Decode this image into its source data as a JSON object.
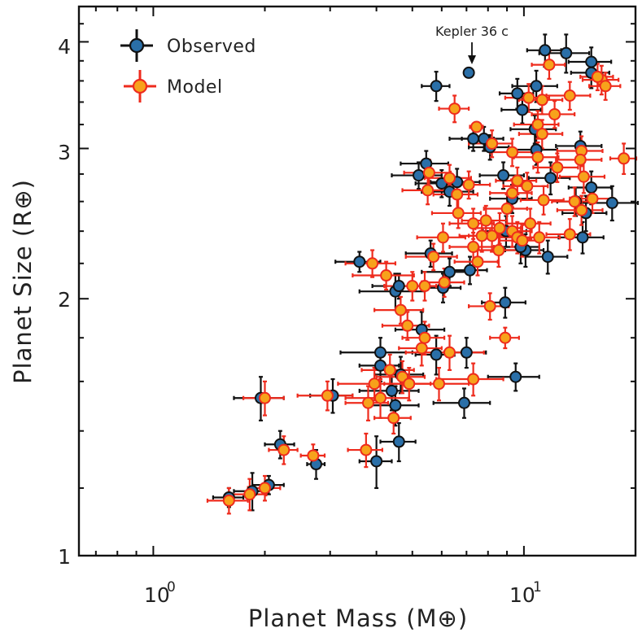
{
  "chart_data": {
    "type": "scatter",
    "title": "",
    "xlabel": "Planet Mass (M⊕)",
    "ylabel": "Planet Size (R⊕)",
    "x_scale": "log",
    "y_scale": "log",
    "xlim": [
      0.63,
      20
    ],
    "ylim": [
      1,
      4.4
    ],
    "x_ticks": [
      {
        "value": 1,
        "label": "10",
        "sup": "0"
      },
      {
        "value": 10,
        "label": "10",
        "sup": "1"
      }
    ],
    "y_ticks": [
      {
        "value": 1,
        "label": "1"
      },
      {
        "value": 2,
        "label": "2"
      },
      {
        "value": 3,
        "label": "3"
      },
      {
        "value": 4,
        "label": "4"
      }
    ],
    "legend": {
      "position": "top-left",
      "entries": [
        "Observed",
        "Model"
      ]
    },
    "annotations": [
      {
        "text": "Kepler 36 c",
        "x": 7.1,
        "y": 3.68
      }
    ],
    "series": [
      {
        "name": "Observed",
        "marker_fill": "#2a6fa8",
        "error_color": "#111111",
        "points": [
          {
            "x": 1.6,
            "y": 1.17,
            "xe": 0.15,
            "ye": 0.03
          },
          {
            "x": 1.85,
            "y": 1.19,
            "xe": 0.2,
            "ye": 0.06
          },
          {
            "x": 2.05,
            "y": 1.21,
            "xe": 0.2,
            "ye": 0.03
          },
          {
            "x": 2.2,
            "y": 1.35,
            "xe": 0.2,
            "ye": 0.05
          },
          {
            "x": 1.95,
            "y": 1.53,
            "xe": 0.3,
            "ye": 0.09
          },
          {
            "x": 2.75,
            "y": 1.28,
            "xe": 0.15,
            "ye": 0.05
          },
          {
            "x": 3.05,
            "y": 1.54,
            "xe": 0.4,
            "ye": 0.07
          },
          {
            "x": 4.0,
            "y": 1.29,
            "xe": 0.4,
            "ye": 0.09
          },
          {
            "x": 4.6,
            "y": 1.36,
            "xe": 0.5,
            "ye": 0.07
          },
          {
            "x": 4.5,
            "y": 1.5,
            "xe": 0.7,
            "ye": 0.08
          },
          {
            "x": 4.4,
            "y": 1.56,
            "xe": 0.8,
            "ye": 0.08
          },
          {
            "x": 4.65,
            "y": 1.63,
            "xe": 0.7,
            "ye": 0.08
          },
          {
            "x": 4.1,
            "y": 1.67,
            "xe": 0.5,
            "ye": 0.07
          },
          {
            "x": 4.1,
            "y": 1.73,
            "xe": 0.9,
            "ye": 0.07
          },
          {
            "x": 5.3,
            "y": 1.84,
            "xe": 0.8,
            "ye": 0.09
          },
          {
            "x": 4.5,
            "y": 2.04,
            "xe": 0.9,
            "ye": 0.1
          },
          {
            "x": 4.6,
            "y": 2.07,
            "xe": 0.7,
            "ye": 0.07
          },
          {
            "x": 5.8,
            "y": 1.72,
            "xe": 0.7,
            "ye": 0.09
          },
          {
            "x": 6.3,
            "y": 2.15,
            "xe": 1.0,
            "ye": 0.08
          },
          {
            "x": 5.6,
            "y": 2.26,
            "xe": 0.8,
            "ye": 0.08
          },
          {
            "x": 6.05,
            "y": 2.06,
            "xe": 0.7,
            "ye": 0.08
          },
          {
            "x": 3.6,
            "y": 2.21,
            "xe": 0.5,
            "ye": 0.06
          },
          {
            "x": 7.15,
            "y": 2.16,
            "xe": 0.8,
            "ye": 0.08
          },
          {
            "x": 7.0,
            "y": 1.73,
            "xe": 0.9,
            "ye": 0.07
          },
          {
            "x": 6.9,
            "y": 1.51,
            "xe": 1.2,
            "ye": 0.06
          },
          {
            "x": 9.5,
            "y": 1.62,
            "xe": 1.5,
            "ye": 0.06
          },
          {
            "x": 8.9,
            "y": 1.98,
            "xe": 1.2,
            "ye": 0.08
          },
          {
            "x": 5.2,
            "y": 2.79,
            "xe": 0.8,
            "ye": 0.1
          },
          {
            "x": 5.45,
            "y": 2.88,
            "xe": 0.8,
            "ye": 0.1
          },
          {
            "x": 6.0,
            "y": 2.73,
            "xe": 0.9,
            "ye": 0.1
          },
          {
            "x": 6.3,
            "y": 2.67,
            "xe": 1.0,
            "ye": 0.1
          },
          {
            "x": 6.6,
            "y": 2.74,
            "xe": 1.0,
            "ye": 0.1
          },
          {
            "x": 5.8,
            "y": 3.55,
            "xe": 0.5,
            "ye": 0.14
          },
          {
            "x": 7.1,
            "y": 3.68,
            "xe": 0.2,
            "ye": 0.04
          },
          {
            "x": 7.3,
            "y": 3.08,
            "xe": 1.0,
            "ye": 0.1
          },
          {
            "x": 7.8,
            "y": 3.08,
            "xe": 1.0,
            "ye": 0.1
          },
          {
            "x": 8.1,
            "y": 3.01,
            "xe": 1.0,
            "ye": 0.1
          },
          {
            "x": 9.6,
            "y": 3.48,
            "xe": 1.0,
            "ye": 0.14
          },
          {
            "x": 9.9,
            "y": 3.33,
            "xe": 1.2,
            "ye": 0.12
          },
          {
            "x": 10.8,
            "y": 3.55,
            "xe": 1.5,
            "ye": 0.15
          },
          {
            "x": 11.4,
            "y": 3.91,
            "xe": 1.2,
            "ye": 0.17
          },
          {
            "x": 13.0,
            "y": 3.88,
            "xe": 2.0,
            "ye": 0.2
          },
          {
            "x": 15.2,
            "y": 3.79,
            "xe": 2.0,
            "ye": 0.15
          },
          {
            "x": 15.2,
            "y": 3.68,
            "xe": 1.8,
            "ye": 0.15
          },
          {
            "x": 10.7,
            "y": 3.16,
            "xe": 1.5,
            "ye": 0.12
          },
          {
            "x": 10.8,
            "y": 2.99,
            "xe": 1.5,
            "ye": 0.12
          },
          {
            "x": 14.2,
            "y": 3.02,
            "xe": 2.0,
            "ye": 0.12
          },
          {
            "x": 8.8,
            "y": 2.79,
            "xe": 1.2,
            "ye": 0.1
          },
          {
            "x": 11.8,
            "y": 2.77,
            "xe": 1.5,
            "ye": 0.12
          },
          {
            "x": 15.2,
            "y": 2.7,
            "xe": 2.0,
            "ye": 0.12
          },
          {
            "x": 14.7,
            "y": 2.52,
            "xe": 2.0,
            "ye": 0.12
          },
          {
            "x": 17.3,
            "y": 2.59,
            "xe": 3.0,
            "ye": 0.12
          },
          {
            "x": 14.4,
            "y": 2.36,
            "xe": 2.0,
            "ye": 0.1
          },
          {
            "x": 11.6,
            "y": 2.24,
            "xe": 1.5,
            "ye": 0.1
          },
          {
            "x": 10.1,
            "y": 2.28,
            "xe": 1.2,
            "ye": 0.1
          },
          {
            "x": 9.8,
            "y": 2.3,
            "xe": 1.2,
            "ye": 0.1
          },
          {
            "x": 8.95,
            "y": 2.4,
            "xe": 1.2,
            "ye": 0.1
          },
          {
            "x": 9.3,
            "y": 2.62,
            "xe": 1.2,
            "ye": 0.1
          },
          {
            "x": 13.8,
            "y": 2.6,
            "xe": 1.5,
            "ye": 0.1
          }
        ]
      },
      {
        "name": "Model",
        "marker_fill": "#f7a21b",
        "marker_edge": "#ee2b1d",
        "error_color": "#ee2b1d",
        "points": [
          {
            "x": 1.6,
            "y": 1.16,
            "xe": 0.2,
            "ye": 0.04
          },
          {
            "x": 1.82,
            "y": 1.18,
            "xe": 0.2,
            "ye": 0.05
          },
          {
            "x": 2.0,
            "y": 1.2,
            "xe": 0.2,
            "ye": 0.04
          },
          {
            "x": 2.25,
            "y": 1.33,
            "xe": 0.2,
            "ye": 0.05
          },
          {
            "x": 2.0,
            "y": 1.53,
            "xe": 0.25,
            "ye": 0.07
          },
          {
            "x": 2.7,
            "y": 1.31,
            "xe": 0.2,
            "ye": 0.04
          },
          {
            "x": 2.95,
            "y": 1.54,
            "xe": 0.5,
            "ye": 0.06
          },
          {
            "x": 3.75,
            "y": 1.33,
            "xe": 0.4,
            "ye": 0.06
          },
          {
            "x": 3.8,
            "y": 1.51,
            "xe": 0.5,
            "ye": 0.07
          },
          {
            "x": 4.1,
            "y": 1.53,
            "xe": 0.8,
            "ye": 0.08
          },
          {
            "x": 3.95,
            "y": 1.59,
            "xe": 0.8,
            "ye": 0.07
          },
          {
            "x": 4.35,
            "y": 1.65,
            "xe": 0.7,
            "ye": 0.07
          },
          {
            "x": 4.45,
            "y": 1.45,
            "xe": 0.5,
            "ye": 0.06
          },
          {
            "x": 4.7,
            "y": 1.62,
            "xe": 0.7,
            "ye": 0.07
          },
          {
            "x": 4.9,
            "y": 1.59,
            "xe": 0.7,
            "ye": 0.07
          },
          {
            "x": 5.3,
            "y": 1.75,
            "xe": 0.7,
            "ye": 0.08
          },
          {
            "x": 5.4,
            "y": 1.8,
            "xe": 0.7,
            "ye": 0.08
          },
          {
            "x": 6.3,
            "y": 1.73,
            "xe": 1.5,
            "ye": 0.08
          },
          {
            "x": 5.9,
            "y": 1.59,
            "xe": 1.2,
            "ye": 0.07
          },
          {
            "x": 7.3,
            "y": 1.61,
            "xe": 1.5,
            "ye": 0.07
          },
          {
            "x": 8.9,
            "y": 1.8,
            "xe": 0.8,
            "ye": 0.05
          },
          {
            "x": 8.1,
            "y": 1.96,
            "xe": 1.0,
            "ye": 0.07
          },
          {
            "x": 4.65,
            "y": 1.94,
            "xe": 0.7,
            "ye": 0.07
          },
          {
            "x": 4.85,
            "y": 1.86,
            "xe": 0.7,
            "ye": 0.07
          },
          {
            "x": 5.0,
            "y": 2.07,
            "xe": 0.8,
            "ye": 0.08
          },
          {
            "x": 5.4,
            "y": 2.07,
            "xe": 0.8,
            "ye": 0.08
          },
          {
            "x": 4.25,
            "y": 2.13,
            "xe": 0.8,
            "ye": 0.08
          },
          {
            "x": 3.9,
            "y": 2.2,
            "xe": 0.6,
            "ye": 0.08
          },
          {
            "x": 6.1,
            "y": 2.09,
            "xe": 0.8,
            "ye": 0.08
          },
          {
            "x": 5.7,
            "y": 2.24,
            "xe": 0.9,
            "ye": 0.08
          },
          {
            "x": 6.05,
            "y": 2.36,
            "xe": 0.9,
            "ye": 0.09
          },
          {
            "x": 7.5,
            "y": 2.21,
            "xe": 1.0,
            "ye": 0.08
          },
          {
            "x": 7.3,
            "y": 2.3,
            "xe": 1.0,
            "ye": 0.09
          },
          {
            "x": 7.3,
            "y": 2.45,
            "xe": 1.0,
            "ye": 0.1
          },
          {
            "x": 7.9,
            "y": 2.47,
            "xe": 1.1,
            "ye": 0.1
          },
          {
            "x": 8.2,
            "y": 2.37,
            "xe": 1.1,
            "ye": 0.1
          },
          {
            "x": 8.6,
            "y": 2.42,
            "xe": 1.2,
            "ye": 0.1
          },
          {
            "x": 9.0,
            "y": 2.55,
            "xe": 1.2,
            "ye": 0.1
          },
          {
            "x": 9.3,
            "y": 2.4,
            "xe": 1.2,
            "ye": 0.1
          },
          {
            "x": 9.6,
            "y": 2.36,
            "xe": 1.3,
            "ye": 0.1
          },
          {
            "x": 9.9,
            "y": 2.34,
            "xe": 1.3,
            "ye": 0.1
          },
          {
            "x": 10.4,
            "y": 2.45,
            "xe": 1.4,
            "ye": 0.1
          },
          {
            "x": 11.0,
            "y": 2.36,
            "xe": 1.5,
            "ye": 0.1
          },
          {
            "x": 13.3,
            "y": 2.38,
            "xe": 1.8,
            "ye": 0.1
          },
          {
            "x": 14.3,
            "y": 2.54,
            "xe": 2.0,
            "ye": 0.1
          },
          {
            "x": 15.3,
            "y": 2.62,
            "xe": 2.0,
            "ye": 0.1
          },
          {
            "x": 13.7,
            "y": 2.6,
            "xe": 1.8,
            "ye": 0.1
          },
          {
            "x": 11.3,
            "y": 2.61,
            "xe": 1.5,
            "ye": 0.1
          },
          {
            "x": 9.3,
            "y": 2.66,
            "xe": 1.2,
            "ye": 0.1
          },
          {
            "x": 9.6,
            "y": 2.75,
            "xe": 1.2,
            "ye": 0.1
          },
          {
            "x": 7.1,
            "y": 2.72,
            "xe": 1.0,
            "ye": 0.1
          },
          {
            "x": 6.6,
            "y": 2.65,
            "xe": 0.9,
            "ye": 0.1
          },
          {
            "x": 6.3,
            "y": 2.77,
            "xe": 0.9,
            "ye": 0.1
          },
          {
            "x": 5.55,
            "y": 2.81,
            "xe": 0.8,
            "ye": 0.1
          },
          {
            "x": 5.5,
            "y": 2.68,
            "xe": 0.8,
            "ye": 0.1
          },
          {
            "x": 10.2,
            "y": 2.71,
            "xe": 1.4,
            "ye": 0.1
          },
          {
            "x": 12.3,
            "y": 2.85,
            "xe": 1.7,
            "ye": 0.11
          },
          {
            "x": 14.3,
            "y": 2.98,
            "xe": 2.0,
            "ye": 0.12
          },
          {
            "x": 14.2,
            "y": 2.91,
            "xe": 2.0,
            "ye": 0.12
          },
          {
            "x": 14.5,
            "y": 2.78,
            "xe": 2.0,
            "ye": 0.12
          },
          {
            "x": 18.6,
            "y": 2.92,
            "xe": 1.5,
            "ye": 0.12
          },
          {
            "x": 10.9,
            "y": 2.93,
            "xe": 1.5,
            "ye": 0.12
          },
          {
            "x": 9.3,
            "y": 2.97,
            "xe": 1.2,
            "ye": 0.11
          },
          {
            "x": 8.2,
            "y": 3.04,
            "xe": 1.1,
            "ye": 0.11
          },
          {
            "x": 10.9,
            "y": 3.2,
            "xe": 1.5,
            "ye": 0.12
          },
          {
            "x": 12.1,
            "y": 3.29,
            "xe": 1.6,
            "ye": 0.12
          },
          {
            "x": 10.3,
            "y": 3.44,
            "xe": 1.4,
            "ye": 0.13
          },
          {
            "x": 11.2,
            "y": 3.42,
            "xe": 1.5,
            "ye": 0.13
          },
          {
            "x": 13.3,
            "y": 3.46,
            "xe": 1.8,
            "ye": 0.13
          },
          {
            "x": 11.7,
            "y": 3.76,
            "xe": 1.2,
            "ye": 0.14
          },
          {
            "x": 16.2,
            "y": 3.61,
            "xe": 1.8,
            "ye": 0.14
          },
          {
            "x": 16.6,
            "y": 3.55,
            "xe": 1.6,
            "ye": 0.13
          },
          {
            "x": 15.8,
            "y": 3.64,
            "xe": 1.6,
            "ye": 0.13
          },
          {
            "x": 6.5,
            "y": 3.34,
            "xe": 0.6,
            "ye": 0.12
          },
          {
            "x": 7.45,
            "y": 3.18,
            "xe": 0.3,
            "ye": 0.04
          },
          {
            "x": 11.2,
            "y": 3.12,
            "xe": 1.5,
            "ye": 0.12
          },
          {
            "x": 8.55,
            "y": 2.28,
            "xe": 1.2,
            "ye": 0.1
          },
          {
            "x": 7.7,
            "y": 2.37,
            "xe": 1.0,
            "ye": 0.1
          },
          {
            "x": 6.65,
            "y": 2.52,
            "xe": 1.0,
            "ye": 0.1
          }
        ]
      }
    ]
  }
}
